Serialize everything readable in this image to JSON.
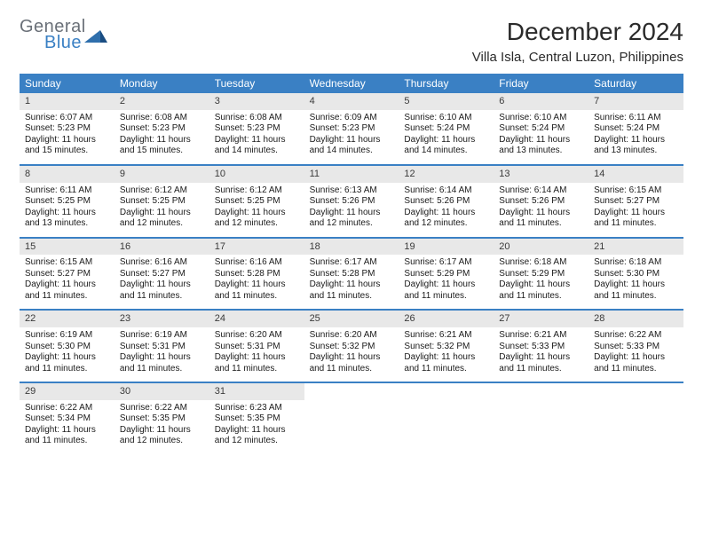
{
  "logo": {
    "general": "General",
    "blue": "Blue"
  },
  "title": "December 2024",
  "location": "Villa Isla, Central Luzon, Philippines",
  "colors": {
    "header_bg": "#3a80c4",
    "header_text": "#ffffff",
    "daynum_bg": "#e8e8e8",
    "text": "#1a1a1a",
    "logo_gray": "#6a7078",
    "logo_blue": "#3a80c4"
  },
  "day_names": [
    "Sunday",
    "Monday",
    "Tuesday",
    "Wednesday",
    "Thursday",
    "Friday",
    "Saturday"
  ],
  "weeks": [
    [
      {
        "n": "1",
        "sr": "6:07 AM",
        "ss": "5:23 PM",
        "dl": "11 hours and 15 minutes."
      },
      {
        "n": "2",
        "sr": "6:08 AM",
        "ss": "5:23 PM",
        "dl": "11 hours and 15 minutes."
      },
      {
        "n": "3",
        "sr": "6:08 AM",
        "ss": "5:23 PM",
        "dl": "11 hours and 14 minutes."
      },
      {
        "n": "4",
        "sr": "6:09 AM",
        "ss": "5:23 PM",
        "dl": "11 hours and 14 minutes."
      },
      {
        "n": "5",
        "sr": "6:10 AM",
        "ss": "5:24 PM",
        "dl": "11 hours and 14 minutes."
      },
      {
        "n": "6",
        "sr": "6:10 AM",
        "ss": "5:24 PM",
        "dl": "11 hours and 13 minutes."
      },
      {
        "n": "7",
        "sr": "6:11 AM",
        "ss": "5:24 PM",
        "dl": "11 hours and 13 minutes."
      }
    ],
    [
      {
        "n": "8",
        "sr": "6:11 AM",
        "ss": "5:25 PM",
        "dl": "11 hours and 13 minutes."
      },
      {
        "n": "9",
        "sr": "6:12 AM",
        "ss": "5:25 PM",
        "dl": "11 hours and 12 minutes."
      },
      {
        "n": "10",
        "sr": "6:12 AM",
        "ss": "5:25 PM",
        "dl": "11 hours and 12 minutes."
      },
      {
        "n": "11",
        "sr": "6:13 AM",
        "ss": "5:26 PM",
        "dl": "11 hours and 12 minutes."
      },
      {
        "n": "12",
        "sr": "6:14 AM",
        "ss": "5:26 PM",
        "dl": "11 hours and 12 minutes."
      },
      {
        "n": "13",
        "sr": "6:14 AM",
        "ss": "5:26 PM",
        "dl": "11 hours and 11 minutes."
      },
      {
        "n": "14",
        "sr": "6:15 AM",
        "ss": "5:27 PM",
        "dl": "11 hours and 11 minutes."
      }
    ],
    [
      {
        "n": "15",
        "sr": "6:15 AM",
        "ss": "5:27 PM",
        "dl": "11 hours and 11 minutes."
      },
      {
        "n": "16",
        "sr": "6:16 AM",
        "ss": "5:27 PM",
        "dl": "11 hours and 11 minutes."
      },
      {
        "n": "17",
        "sr": "6:16 AM",
        "ss": "5:28 PM",
        "dl": "11 hours and 11 minutes."
      },
      {
        "n": "18",
        "sr": "6:17 AM",
        "ss": "5:28 PM",
        "dl": "11 hours and 11 minutes."
      },
      {
        "n": "19",
        "sr": "6:17 AM",
        "ss": "5:29 PM",
        "dl": "11 hours and 11 minutes."
      },
      {
        "n": "20",
        "sr": "6:18 AM",
        "ss": "5:29 PM",
        "dl": "11 hours and 11 minutes."
      },
      {
        "n": "21",
        "sr": "6:18 AM",
        "ss": "5:30 PM",
        "dl": "11 hours and 11 minutes."
      }
    ],
    [
      {
        "n": "22",
        "sr": "6:19 AM",
        "ss": "5:30 PM",
        "dl": "11 hours and 11 minutes."
      },
      {
        "n": "23",
        "sr": "6:19 AM",
        "ss": "5:31 PM",
        "dl": "11 hours and 11 minutes."
      },
      {
        "n": "24",
        "sr": "6:20 AM",
        "ss": "5:31 PM",
        "dl": "11 hours and 11 minutes."
      },
      {
        "n": "25",
        "sr": "6:20 AM",
        "ss": "5:32 PM",
        "dl": "11 hours and 11 minutes."
      },
      {
        "n": "26",
        "sr": "6:21 AM",
        "ss": "5:32 PM",
        "dl": "11 hours and 11 minutes."
      },
      {
        "n": "27",
        "sr": "6:21 AM",
        "ss": "5:33 PM",
        "dl": "11 hours and 11 minutes."
      },
      {
        "n": "28",
        "sr": "6:22 AM",
        "ss": "5:33 PM",
        "dl": "11 hours and 11 minutes."
      }
    ],
    [
      {
        "n": "29",
        "sr": "6:22 AM",
        "ss": "5:34 PM",
        "dl": "11 hours and 11 minutes."
      },
      {
        "n": "30",
        "sr": "6:22 AM",
        "ss": "5:35 PM",
        "dl": "11 hours and 12 minutes."
      },
      {
        "n": "31",
        "sr": "6:23 AM",
        "ss": "5:35 PM",
        "dl": "11 hours and 12 minutes."
      },
      null,
      null,
      null,
      null
    ]
  ],
  "labels": {
    "sunrise": "Sunrise: ",
    "sunset": "Sunset: ",
    "daylight": "Daylight: "
  }
}
